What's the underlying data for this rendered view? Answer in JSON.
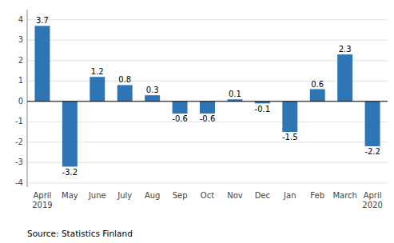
{
  "chart_data": {
    "type": "bar",
    "categories": [
      "April\n2019",
      "May",
      "June",
      "July",
      "Aug",
      "Sep",
      "Oct",
      "Nov",
      "Dec",
      "Jan",
      "Feb",
      "March",
      "April\n2020"
    ],
    "values": [
      3.7,
      -3.2,
      1.2,
      0.8,
      0.3,
      -0.6,
      -0.6,
      0.1,
      -0.1,
      -1.5,
      0.6,
      2.3,
      -2.2
    ],
    "color": "#2e75b6",
    "ylim": [
      -4.2,
      4.5
    ],
    "yticks": [
      -4,
      -3,
      -2,
      -1,
      0,
      1,
      2,
      3,
      4
    ],
    "grid": true,
    "data_labels": true,
    "annotations": [
      "Source: Statistics Finland"
    ]
  }
}
